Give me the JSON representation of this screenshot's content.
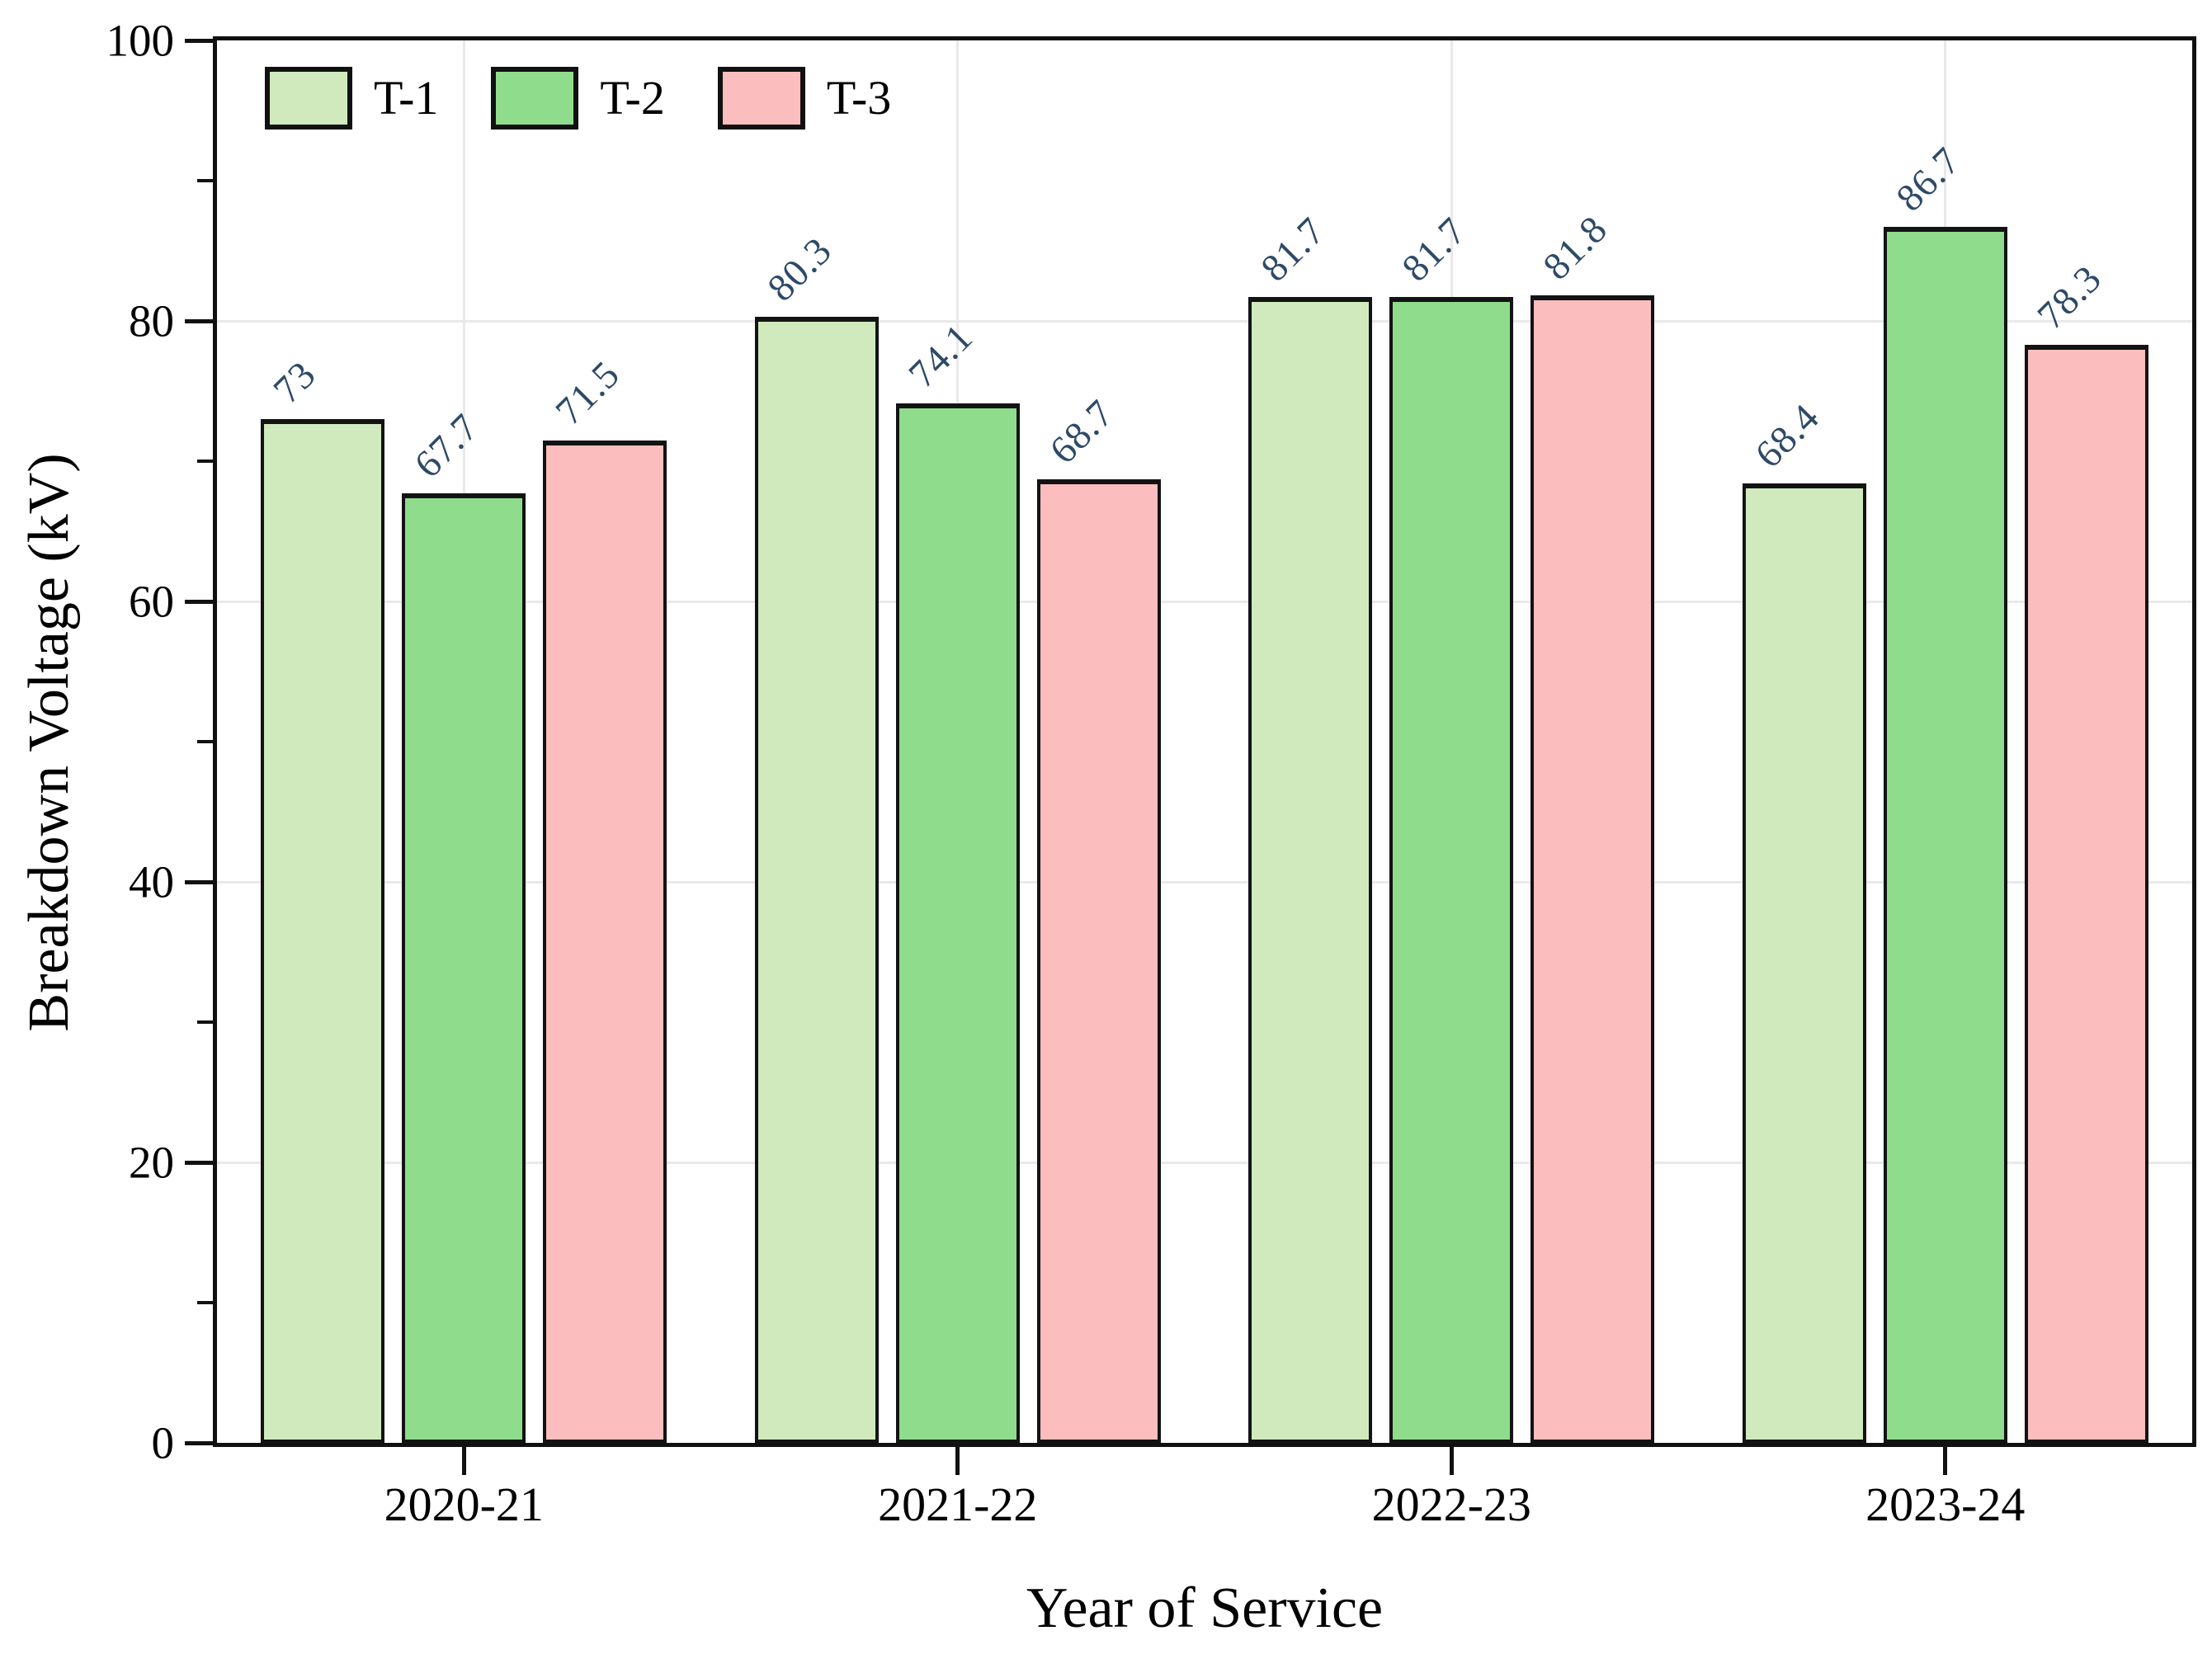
{
  "chart_data": {
    "type": "bar",
    "title": "",
    "xlabel": "Year of Service",
    "ylabel": "Breakdown Voltage (kV)",
    "categories": [
      "2020-21",
      "2021-22",
      "2022-23",
      "2023-24"
    ],
    "series": [
      {
        "name": "T-1",
        "color": "#d0e9bd",
        "edge_color": "#131313",
        "values": [
          73,
          80.3,
          81.7,
          68.4
        ],
        "labels": [
          "73",
          "80.3",
          "81.7",
          "68.4"
        ]
      },
      {
        "name": "T-2",
        "color": "#8edc8c",
        "edge_color": "#131313",
        "values": [
          67.7,
          74.1,
          81.7,
          86.7
        ],
        "labels": [
          "67.7",
          "74.1",
          "81.7",
          "86.7"
        ]
      },
      {
        "name": "T-3",
        "color": "#fbbdbd",
        "edge_color": "#131313",
        "values": [
          71.5,
          68.7,
          81.8,
          78.3
        ],
        "labels": [
          "71.5",
          "68.7",
          "81.8",
          "78.3"
        ]
      }
    ],
    "ylim": [
      0,
      100
    ],
    "yticks": [
      0,
      20,
      40,
      60,
      80,
      100
    ],
    "minor_yticks": [
      10,
      30,
      50,
      70,
      90
    ],
    "grid": {
      "horizontal": "major-yticks",
      "vertical": "category-centers",
      "color": "#e9e9e9"
    },
    "legend_position": "top-left-inside",
    "value_label_color": "#2d4a68",
    "value_label_rotation_deg": 45,
    "axis_color": "#111111",
    "background_color": "#ffffff"
  }
}
